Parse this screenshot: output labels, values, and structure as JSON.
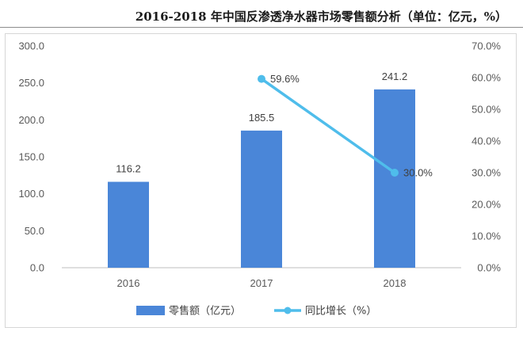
{
  "title": "2016-2018 年中国反渗透净水器市场零售额分析（单位：亿元，%）",
  "colors": {
    "bar": "#4A86D8",
    "line": "#4FBDEB",
    "axis": "#bfbfbf",
    "tick_text": "#595959"
  },
  "chart_data": {
    "type": "bar",
    "title": "2016-2018 年中国反渗透净水器市场零售额分析（单位：亿元，%）",
    "categories": [
      "2016",
      "2017",
      "2018"
    ],
    "series": [
      {
        "name": "零售额（亿元）",
        "type": "bar",
        "axis": "left",
        "values": [
          116.2,
          185.5,
          241.2
        ],
        "labels": [
          "116.2",
          "185.5",
          "241.2"
        ]
      },
      {
        "name": "同比增长（%）",
        "type": "line",
        "axis": "right",
        "values": [
          null,
          59.6,
          30.0
        ],
        "labels": [
          "",
          "59.6%",
          "30.0%"
        ]
      }
    ],
    "y_left": {
      "ylim": [
        0,
        300
      ],
      "ticks": [
        "0.0",
        "50.0",
        "100.0",
        "150.0",
        "200.0",
        "250.0",
        "300.0"
      ]
    },
    "y_right": {
      "ylim": [
        0,
        70
      ],
      "ticks": [
        "0.0%",
        "10.0%",
        "20.0%",
        "30.0%",
        "40.0%",
        "50.0%",
        "60.0%",
        "70.0%"
      ]
    },
    "grid": false,
    "legend_position": "bottom"
  }
}
